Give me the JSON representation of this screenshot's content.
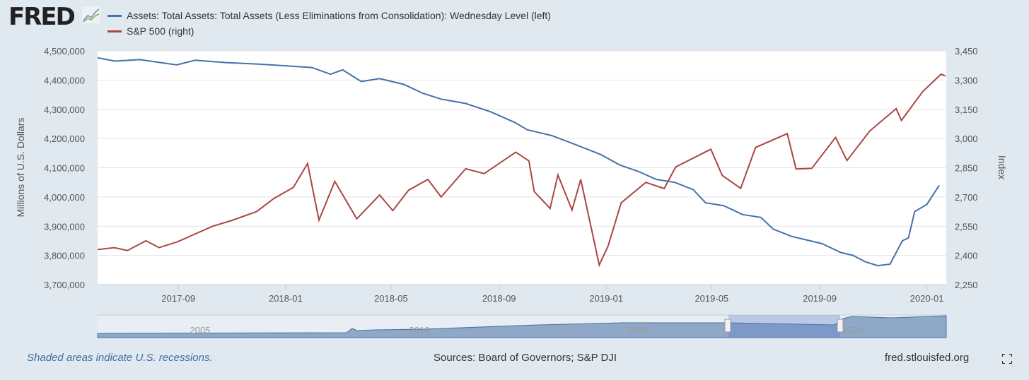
{
  "logo": "FRED",
  "colors": {
    "assets": "#4572a7",
    "sp500": "#aa4643",
    "plot_bg": "#ffffff",
    "page_bg": "#e1e9f0"
  },
  "chart_data": {
    "type": "line",
    "x_ticks": [
      "2017-09",
      "2018-01",
      "2018-05",
      "2018-09",
      "2019-01",
      "2019-05",
      "2019-09",
      "2020-01"
    ],
    "xlim": [
      "2017-06-01",
      "2020-01-23"
    ],
    "ylabel_left": "Millions of U.S. Dollars",
    "ylabel_right": "Index",
    "ylim_left": [
      3700000,
      4500000
    ],
    "ylim_right": [
      2250,
      3450
    ],
    "y_ticks_left": [
      "3,700,000",
      "3,800,000",
      "3,900,000",
      "4,000,000",
      "4,100,000",
      "4,200,000",
      "4,300,000",
      "4,400,000",
      "4,500,000"
    ],
    "y_ticks_right": [
      "2,250",
      "2,400",
      "2,550",
      "2,700",
      "2,850",
      "3,000",
      "3,150",
      "3,300",
      "3,450"
    ],
    "grid": true,
    "legend_position": "top-left",
    "series": [
      {
        "name": "Assets: Total Assets: Total Assets (Less Eliminations from Consolidation): Wednesday Level (left)",
        "axis": "left",
        "points": [
          [
            "2017-06-01",
            4476000
          ],
          [
            "2017-06-21",
            4465000
          ],
          [
            "2017-07-19",
            4470000
          ],
          [
            "2017-08-30",
            4452000
          ],
          [
            "2017-09-20",
            4468000
          ],
          [
            "2017-10-25",
            4460000
          ],
          [
            "2017-11-29",
            4455000
          ],
          [
            "2017-12-27",
            4450000
          ],
          [
            "2018-01-31",
            4443000
          ],
          [
            "2018-02-21",
            4420000
          ],
          [
            "2018-03-07",
            4435000
          ],
          [
            "2018-03-28",
            4395000
          ],
          [
            "2018-04-18",
            4405000
          ],
          [
            "2018-05-16",
            4385000
          ],
          [
            "2018-06-06",
            4355000
          ],
          [
            "2018-06-27",
            4335000
          ],
          [
            "2018-07-25",
            4320000
          ],
          [
            "2018-08-22",
            4292000
          ],
          [
            "2018-09-19",
            4255000
          ],
          [
            "2018-10-03",
            4230000
          ],
          [
            "2018-10-31",
            4210000
          ],
          [
            "2018-11-28",
            4178000
          ],
          [
            "2018-12-26",
            4145000
          ],
          [
            "2019-01-16",
            4110000
          ],
          [
            "2019-02-06",
            4088000
          ],
          [
            "2019-02-27",
            4060000
          ],
          [
            "2019-03-20",
            4050000
          ],
          [
            "2019-04-10",
            4025000
          ],
          [
            "2019-04-24",
            3980000
          ],
          [
            "2019-05-15",
            3970000
          ],
          [
            "2019-06-05",
            3940000
          ],
          [
            "2019-06-26",
            3930000
          ],
          [
            "2019-07-10",
            3890000
          ],
          [
            "2019-07-31",
            3865000
          ],
          [
            "2019-08-21",
            3850000
          ],
          [
            "2019-09-04",
            3840000
          ],
          [
            "2019-09-25",
            3810000
          ],
          [
            "2019-10-09",
            3800000
          ],
          [
            "2019-10-23",
            3778000
          ],
          [
            "2019-11-06",
            3765000
          ],
          [
            "2019-11-20",
            3770000
          ],
          [
            "2019-12-04",
            3850000
          ],
          [
            "2019-12-11",
            3860000
          ],
          [
            "2019-12-18",
            3950000
          ],
          [
            "2020-01-01",
            3975000
          ],
          [
            "2020-01-15",
            4040000
          ]
        ]
      },
      {
        "name": "S&P 500 (right)",
        "axis": "right",
        "points": []
      }
    ]
  },
  "footer": {
    "recession_note": "Shaded areas indicate U.S. recessions.",
    "sources": "Sources: Board of Governors; S&P DJI",
    "site": "fred.stlouisfed.org"
  },
  "navigator": {
    "labels": [
      "2005",
      "2010",
      "2015",
      "2020"
    ]
  }
}
